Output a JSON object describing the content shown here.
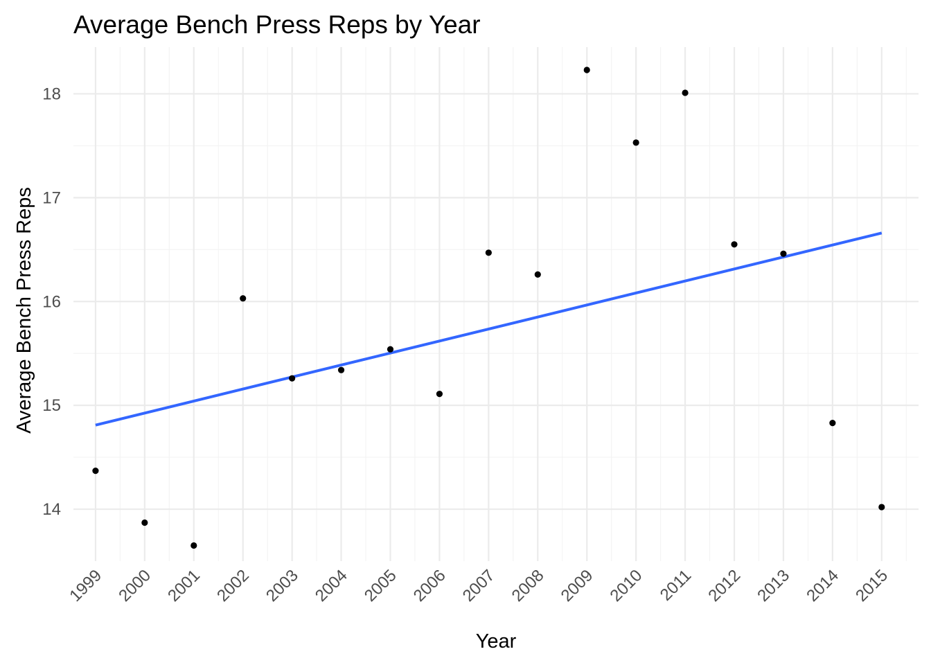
{
  "chart_data": {
    "type": "scatter",
    "title": "Average Bench Press Reps by Year",
    "xlabel": "Year",
    "ylabel": "Average Bench Press Reps",
    "x": [
      1999,
      2000,
      2001,
      2002,
      2003,
      2004,
      2005,
      2006,
      2007,
      2008,
      2009,
      2010,
      2011,
      2012,
      2013,
      2014,
      2015
    ],
    "y": [
      14.37,
      13.87,
      13.65,
      16.03,
      15.26,
      15.34,
      15.54,
      15.11,
      16.47,
      16.26,
      18.23,
      17.53,
      18.01,
      16.55,
      16.46,
      14.83,
      14.02
    ],
    "xticks": [
      "1999",
      "2000",
      "2001",
      "2002",
      "2003",
      "2004",
      "2005",
      "2006",
      "2007",
      "2008",
      "2009",
      "2010",
      "2011",
      "2012",
      "2013",
      "2014",
      "2015"
    ],
    "yticks": [
      "14",
      "15",
      "16",
      "17",
      "18"
    ],
    "xlim": [
      1998.55,
      2015.75
    ],
    "ylim": [
      13.5,
      18.45
    ],
    "trend_line": {
      "type": "linear",
      "color": "#3366ff",
      "x": [
        1999,
        2015
      ],
      "y": [
        14.81,
        16.66
      ]
    },
    "point_color": "#000000",
    "grid": true,
    "legend": "none"
  }
}
